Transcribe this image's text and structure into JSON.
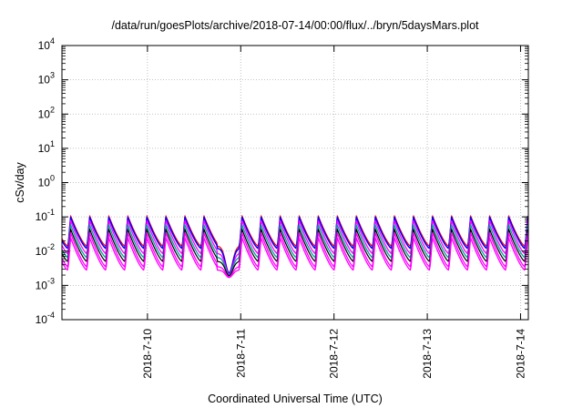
{
  "chart_data": {
    "type": "line",
    "title": "/data/run/goesPlots/archive/2018-07-14/00:00/flux/../bryn/5daysMars.plot",
    "xlabel": "Coordinated Universal Time (UTC)",
    "ylabel": "cSv/day",
    "yscale": "log",
    "ylim": [
      0.0001,
      10000
    ],
    "xlim": [
      "2018-07-09 02:00",
      "2018-07-14 02:00"
    ],
    "yticks": [
      {
        "value": 0.0001,
        "base": "10",
        "exp": "-4"
      },
      {
        "value": 0.001,
        "base": "10",
        "exp": "-3"
      },
      {
        "value": 0.01,
        "base": "10",
        "exp": "-2"
      },
      {
        "value": 0.1,
        "base": "10",
        "exp": "-1"
      },
      {
        "value": 1,
        "base": "10",
        "exp": "0"
      },
      {
        "value": 10,
        "base": "10",
        "exp": "1"
      },
      {
        "value": 100,
        "base": "10",
        "exp": "2"
      },
      {
        "value": 1000,
        "base": "10",
        "exp": "3"
      },
      {
        "value": 10000,
        "base": "10",
        "exp": "4"
      }
    ],
    "xticks": [
      {
        "label": "2018-7-10",
        "date": "2018-07-10 00:00"
      },
      {
        "label": "2018-7-11",
        "date": "2018-07-11 00:00"
      },
      {
        "label": "2018-7-12",
        "date": "2018-07-12 00:00"
      },
      {
        "label": "2018-7-13",
        "date": "2018-07-13 00:00"
      },
      {
        "label": "2018-7-14",
        "date": "2018-07-14 00:00"
      }
    ],
    "grid": true,
    "pattern": {
      "description": "sawtooth: sharp rise to peak then decay, repeating",
      "period_hours": 4.9,
      "dip": {
        "date": "2018-07-10 21:00",
        "min_value": 0.0015
      }
    },
    "series": [
      {
        "color": "#ff0000",
        "peak": 0.11,
        "trough": 0.014,
        "width": 1.2
      },
      {
        "color": "#0000ff",
        "peak": 0.1,
        "trough": 0.012,
        "width": 1.5
      },
      {
        "color": "#ff00ff",
        "peak": 0.08,
        "trough": 0.0085,
        "width": 1.3
      },
      {
        "color": "#00a0a0",
        "peak": 0.06,
        "trough": 0.0065,
        "width": 1.3
      },
      {
        "color": "#000000",
        "peak": 0.045,
        "trough": 0.005,
        "width": 1.2
      },
      {
        "color": "#ff00ff",
        "peak": 0.035,
        "trough": 0.0035,
        "width": 1.3
      },
      {
        "color": "#ff00ff",
        "peak": 0.025,
        "trough": 0.0028,
        "width": 1.3
      }
    ]
  }
}
